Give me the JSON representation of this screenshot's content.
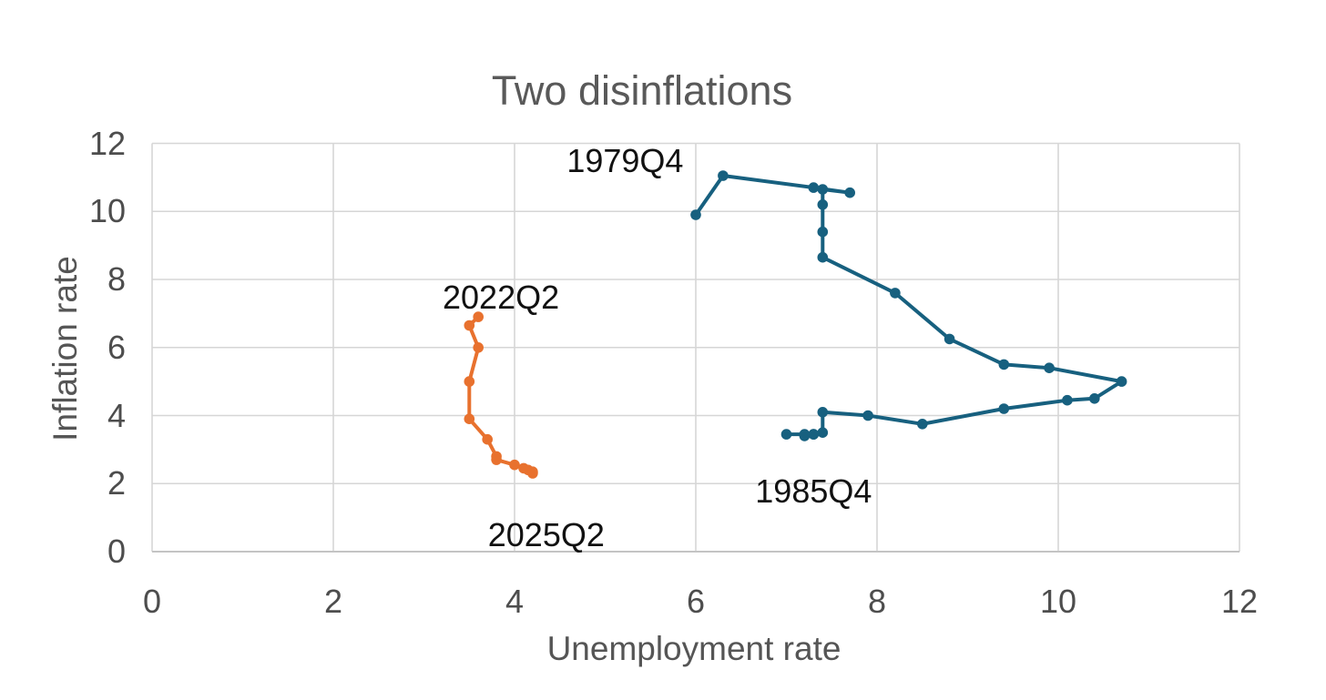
{
  "page": {
    "background": "#ffffff"
  },
  "chart_data": {
    "type": "line",
    "title": "Two disinflations",
    "xlabel": "Unemployment rate",
    "ylabel": "Inflation rate",
    "xlim": [
      0,
      12
    ],
    "ylim": [
      0,
      12
    ],
    "xticks": [
      0,
      2,
      4,
      6,
      8,
      10,
      12
    ],
    "yticks": [
      0,
      2,
      4,
      6,
      8,
      10,
      12
    ],
    "grid": true,
    "legend": "none",
    "series": [
      {
        "id": "series-1979-1985",
        "color": "#17607f",
        "points": [
          [
            6.0,
            9.9
          ],
          [
            6.3,
            11.05
          ],
          [
            7.3,
            10.7
          ],
          [
            7.7,
            10.55
          ],
          [
            7.4,
            10.65
          ],
          [
            7.4,
            10.2
          ],
          [
            7.4,
            9.4
          ],
          [
            7.4,
            8.65
          ],
          [
            8.2,
            7.6
          ],
          [
            8.8,
            6.25
          ],
          [
            9.4,
            5.5
          ],
          [
            9.9,
            5.4
          ],
          [
            10.7,
            5.0
          ],
          [
            10.4,
            4.5
          ],
          [
            10.1,
            4.45
          ],
          [
            9.4,
            4.2
          ],
          [
            8.5,
            3.75
          ],
          [
            7.9,
            4.0
          ],
          [
            7.4,
            4.1
          ],
          [
            7.4,
            3.5
          ],
          [
            7.3,
            3.45
          ],
          [
            7.2,
            3.4
          ],
          [
            7.3,
            3.45
          ],
          [
            7.2,
            3.45
          ],
          [
            7.0,
            3.45
          ]
        ]
      },
      {
        "id": "series-2022-2025",
        "color": "#e8712e",
        "points": [
          [
            3.6,
            6.9
          ],
          [
            3.5,
            6.65
          ],
          [
            3.6,
            6.0
          ],
          [
            3.5,
            5.0
          ],
          [
            3.5,
            3.9
          ],
          [
            3.7,
            3.3
          ],
          [
            3.8,
            2.8
          ],
          [
            3.8,
            2.7
          ],
          [
            4.0,
            2.55
          ],
          [
            4.1,
            2.45
          ],
          [
            4.15,
            2.4
          ],
          [
            4.2,
            2.35
          ],
          [
            4.2,
            2.3
          ]
        ]
      }
    ],
    "annotations": [
      {
        "id": "annotation-1979q4",
        "text": "1979Q4",
        "x": 5.22,
        "y": 11.48
      },
      {
        "id": "annotation-2022q2",
        "text": "2022Q2",
        "x": 3.85,
        "y": 7.46
      },
      {
        "id": "annotation-1985q4",
        "text": "1985Q4",
        "x": 7.3,
        "y": 1.77
      },
      {
        "id": "annotation-2025q2",
        "text": "2025Q2",
        "x": 4.35,
        "y": 0.48
      }
    ],
    "colors": {
      "gridline": "#d6d6d6",
      "axis_line": "#c4c4c4",
      "title_text": "#595959",
      "tick_text": "#4d4d4d",
      "axis_title_text": "#555555",
      "annotation_text": "#111111"
    }
  }
}
